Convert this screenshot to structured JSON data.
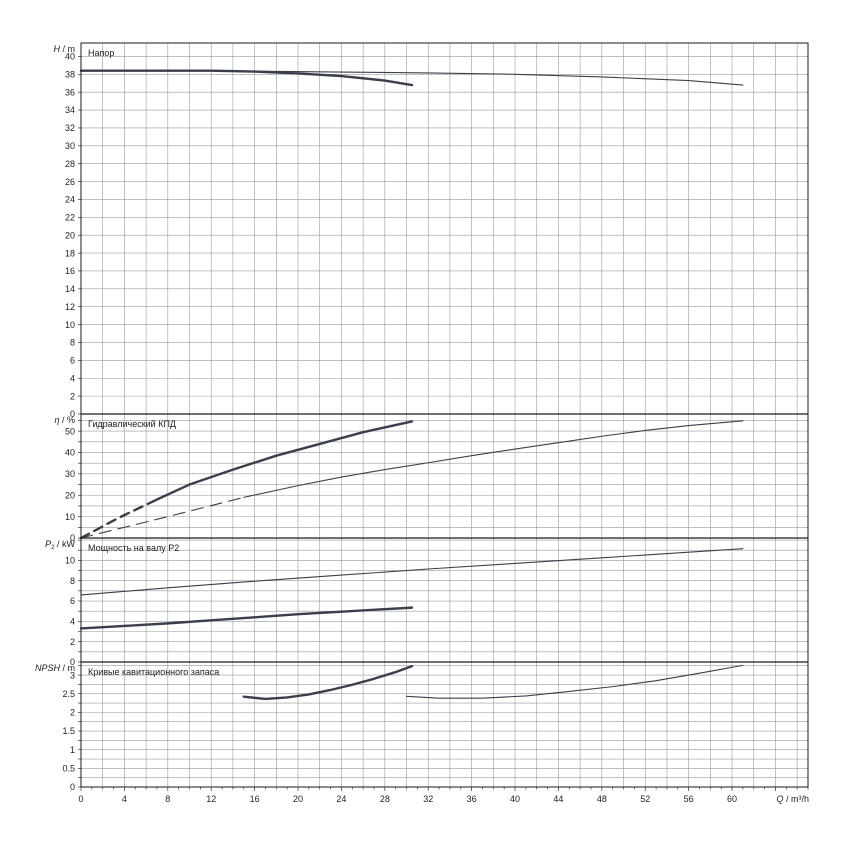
{
  "chart_data": {
    "type": "line",
    "colors": {
      "curve": "#3a3f4d",
      "grid": "#9a9a9a",
      "frame": "#1a1a1a"
    },
    "x_axis": {
      "label_main": "Q",
      "label_unit": " / m³/h",
      "range": [
        0,
        67
      ],
      "ticks": [
        0,
        4,
        8,
        12,
        16,
        20,
        24,
        28,
        32,
        36,
        40,
        44,
        48,
        52,
        56,
        60
      ],
      "tick_labels": [
        "0",
        "4",
        "8",
        "12",
        "16",
        "20",
        "24",
        "28",
        "32",
        "36",
        "40",
        "44",
        "48",
        "52",
        "56",
        "60"
      ],
      "grid_step": 2
    },
    "panels": [
      {
        "id": "head",
        "title": "Напор",
        "ylabel_main": "H",
        "ylabel_unit": " / m",
        "ylim": [
          0,
          41.5
        ],
        "grid_step": 2,
        "ticks": [
          0,
          2,
          4,
          6,
          8,
          10,
          12,
          14,
          16,
          18,
          20,
          22,
          24,
          26,
          28,
          30,
          32,
          34,
          36,
          38,
          40
        ],
        "tick_labels": [
          "0",
          "2",
          "4",
          "6",
          "8",
          "10",
          "12",
          "14",
          "16",
          "18",
          "20",
          "22",
          "24",
          "26",
          "28",
          "30",
          "32",
          "34",
          "36",
          "38",
          "40"
        ],
        "series": [
          {
            "style": "thick",
            "points": [
              [
                0,
                38.4
              ],
              [
                4,
                38.4
              ],
              [
                8,
                38.4
              ],
              [
                12,
                38.4
              ],
              [
                16,
                38.3
              ],
              [
                20,
                38.1
              ],
              [
                24,
                37.8
              ],
              [
                28,
                37.3
              ],
              [
                30.5,
                36.8
              ]
            ]
          },
          {
            "style": "thin",
            "points": [
              [
                0,
                38.4
              ],
              [
                8,
                38.4
              ],
              [
                16,
                38.35
              ],
              [
                24,
                38.25
              ],
              [
                32,
                38.15
              ],
              [
                40,
                38.0
              ],
              [
                48,
                37.7
              ],
              [
                56,
                37.3
              ],
              [
                61,
                36.8
              ]
            ]
          }
        ]
      },
      {
        "id": "efficiency",
        "title": "Гидравлический КПД",
        "ylabel_main": "η",
        "ylabel_unit": " / %",
        "ylim": [
          0,
          58
        ],
        "grid_step": 5,
        "ticks": [
          0,
          10,
          20,
          30,
          40,
          50
        ],
        "tick_labels": [
          "0",
          "10",
          "20",
          "30",
          "40",
          "50"
        ],
        "series": [
          {
            "style": "thick-dashed",
            "points": [
              [
                0,
                0
              ],
              [
                3.5,
                9.5
              ],
              [
                7,
                18
              ]
            ]
          },
          {
            "style": "thick",
            "points": [
              [
                7,
                18
              ],
              [
                10,
                25
              ],
              [
                14,
                32
              ],
              [
                18,
                38.5
              ],
              [
                22,
                44
              ],
              [
                26,
                49.5
              ],
              [
                30.5,
                54.5
              ]
            ]
          },
          {
            "style": "thin-dashed",
            "points": [
              [
                0,
                0
              ],
              [
                8,
                10
              ],
              [
                15,
                19
              ]
            ]
          },
          {
            "style": "thin",
            "points": [
              [
                15,
                19
              ],
              [
                20,
                24.5
              ],
              [
                24,
                28.5
              ],
              [
                28,
                32
              ],
              [
                32,
                35.2
              ],
              [
                36,
                38.5
              ],
              [
                40,
                41.6
              ],
              [
                44,
                44.6
              ],
              [
                48,
                47.6
              ],
              [
                52,
                50.3
              ],
              [
                56,
                52.6
              ],
              [
                61,
                54.8
              ]
            ]
          }
        ]
      },
      {
        "id": "power",
        "title": "Мощность на валу P2",
        "ylabel_main": "P",
        "ylabel_sub": "2",
        "ylabel_unit": " / kW",
        "ylim": [
          0,
          12.2
        ],
        "grid_step": 1,
        "ticks": [
          0,
          2,
          4,
          6,
          8,
          10
        ],
        "tick_labels": [
          "0",
          "2",
          "4",
          "6",
          "8",
          "10"
        ],
        "series": [
          {
            "style": "thick",
            "points": [
              [
                0,
                3.3
              ],
              [
                4,
                3.55
              ],
              [
                8,
                3.8
              ],
              [
                12,
                4.1
              ],
              [
                16,
                4.4
              ],
              [
                20,
                4.7
              ],
              [
                24,
                4.95
              ],
              [
                28,
                5.2
              ],
              [
                30.5,
                5.35
              ]
            ]
          },
          {
            "style": "thin",
            "points": [
              [
                0,
                6.6
              ],
              [
                8,
                7.3
              ],
              [
                16,
                7.95
              ],
              [
                24,
                8.55
              ],
              [
                32,
                9.15
              ],
              [
                40,
                9.7
              ],
              [
                48,
                10.25
              ],
              [
                56,
                10.8
              ],
              [
                61,
                11.15
              ]
            ]
          }
        ]
      },
      {
        "id": "npsh",
        "title": "Кривые кавитационного запаса",
        "ylabel_main": "NPSH",
        "ylabel_unit": " / m",
        "ylim": [
          0,
          3.35
        ],
        "grid_step": 0.25,
        "ticks": [
          0,
          0.5,
          1,
          1.5,
          2,
          2.5,
          3
        ],
        "tick_labels": [
          "0",
          "0.5",
          "1",
          "1.5",
          "2",
          "2.5",
          "3"
        ],
        "series": [
          {
            "style": "thick",
            "points": [
              [
                15,
                2.42
              ],
              [
                17,
                2.36
              ],
              [
                19,
                2.4
              ],
              [
                21,
                2.48
              ],
              [
                23,
                2.6
              ],
              [
                25,
                2.74
              ],
              [
                27,
                2.9
              ],
              [
                29,
                3.08
              ],
              [
                30.5,
                3.24
              ]
            ]
          },
          {
            "style": "thin",
            "points": [
              [
                30,
                2.43
              ],
              [
                33,
                2.38
              ],
              [
                37,
                2.38
              ],
              [
                41,
                2.44
              ],
              [
                45,
                2.56
              ],
              [
                49,
                2.69
              ],
              [
                53,
                2.85
              ],
              [
                57,
                3.05
              ],
              [
                61,
                3.26
              ]
            ]
          }
        ]
      }
    ]
  }
}
